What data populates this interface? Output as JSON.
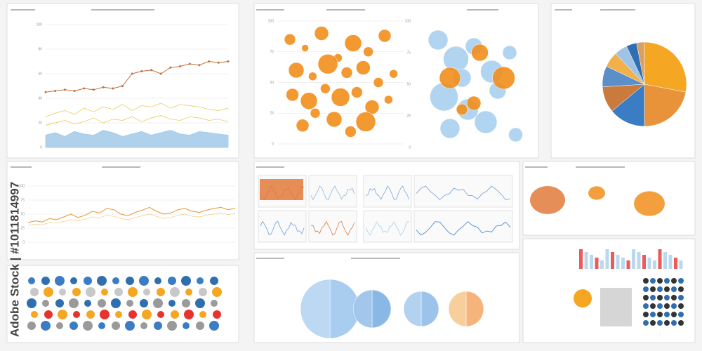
{
  "watermark": "Adobe Stock | #1011814997",
  "chart_data": [
    {
      "type": "line",
      "x": [
        0,
        1,
        2,
        3,
        4,
        5,
        6,
        7,
        8,
        9,
        10,
        11,
        12,
        13,
        14,
        15,
        16,
        17,
        18,
        19
      ],
      "xlim": [
        0,
        19
      ],
      "ylim": [
        0,
        100
      ],
      "yticks": [
        0,
        20,
        40,
        60,
        80,
        100
      ],
      "grid": true,
      "series": [
        {
          "color": "#c0703a",
          "values": [
            45,
            46,
            47,
            46,
            48,
            47,
            49,
            48,
            50,
            60,
            62,
            63,
            60,
            65,
            66,
            68,
            67,
            70,
            69,
            70
          ]
        },
        {
          "color": "#e8c24a",
          "values": [
            25,
            28,
            30,
            27,
            32,
            29,
            33,
            31,
            35,
            30,
            34,
            33,
            36,
            32,
            35,
            34,
            33,
            31,
            30,
            32
          ]
        },
        {
          "color": "#e8c24a",
          "values": [
            18,
            20,
            22,
            19,
            21,
            24,
            20,
            23,
            22,
            25,
            21,
            24,
            26,
            23,
            22,
            25,
            24,
            22,
            23,
            21
          ]
        },
        {
          "color": "#9cc6e6",
          "area": true,
          "values": [
            10,
            12,
            9,
            13,
            11,
            10,
            14,
            12,
            9,
            11,
            13,
            10,
            12,
            14,
            11,
            10,
            13,
            12,
            11,
            10
          ]
        }
      ]
    },
    {
      "type": "bubble",
      "xlim": [
        0,
        100
      ],
      "ylim": [
        0,
        100
      ],
      "yticks": [
        0,
        25,
        50,
        75,
        100
      ],
      "grid": true,
      "series": [
        {
          "color": "#f28e1c",
          "x": [
            10,
            22,
            35,
            48,
            60,
            72,
            85,
            15,
            28,
            40,
            55,
            68,
            80,
            92,
            12,
            25,
            38,
            50,
            63,
            75,
            88,
            20,
            45,
            70,
            30,
            58
          ],
          "y": [
            85,
            78,
            90,
            70,
            82,
            75,
            88,
            60,
            55,
            65,
            58,
            62,
            50,
            57,
            40,
            35,
            45,
            38,
            42,
            30,
            36,
            15,
            20,
            18,
            25,
            10
          ],
          "size": [
            8,
            5,
            10,
            6,
            12,
            7,
            9,
            11,
            6,
            14,
            8,
            10,
            7,
            6,
            9,
            12,
            7,
            13,
            8,
            10,
            6,
            9,
            11,
            14,
            7,
            8
          ]
        }
      ]
    },
    {
      "type": "bubble",
      "xlim": [
        0,
        100
      ],
      "ylim": [
        0,
        100
      ],
      "yticks": [
        0,
        25,
        50,
        75,
        100
      ],
      "grid": false,
      "series": [
        {
          "color": "#a9cfee",
          "x": [
            20,
            35,
            50,
            65,
            80,
            25,
            45,
            70,
            30,
            60,
            85,
            40
          ],
          "y": [
            85,
            70,
            80,
            60,
            75,
            40,
            30,
            45,
            15,
            20,
            10,
            55
          ],
          "size": [
            14,
            18,
            12,
            16,
            10,
            20,
            15,
            12,
            14,
            16,
            10,
            13
          ]
        },
        {
          "color": "#f28e1c",
          "x": [
            55,
            30,
            75,
            50,
            40
          ],
          "y": [
            75,
            55,
            55,
            35,
            30
          ],
          "size": [
            12,
            15,
            16,
            10,
            8
          ]
        }
      ]
    },
    {
      "type": "pie",
      "values": [
        28,
        22,
        14,
        10,
        8,
        6,
        5,
        4,
        3
      ],
      "colors": [
        "#f5a623",
        "#e8933a",
        "#3a7dc4",
        "#c97a3c",
        "#5b8fc9",
        "#f0b04a",
        "#9fc3e6",
        "#2f6fb0",
        "#d9a066"
      ]
    },
    {
      "type": "line",
      "x": [
        0,
        1,
        2,
        3,
        4,
        5,
        6,
        7,
        8,
        9,
        10,
        11,
        12,
        13,
        14,
        15,
        16,
        17,
        18,
        19,
        20,
        21,
        22,
        23,
        24,
        25,
        26,
        27,
        28,
        29
      ],
      "xlim": [
        0,
        29
      ],
      "ylim": [
        0,
        100
      ],
      "yticks": [
        0,
        25,
        50,
        75,
        100
      ],
      "grid": true,
      "series": [
        {
          "color": "#e8952e",
          "values": [
            35,
            38,
            36,
            42,
            40,
            45,
            50,
            44,
            48,
            55,
            52,
            60,
            58,
            50,
            47,
            53,
            57,
            62,
            55,
            50,
            52,
            58,
            60,
            55,
            53,
            57,
            60,
            62,
            58,
            60
          ]
        },
        {
          "color": "#f3c98a",
          "values": [
            30,
            32,
            31,
            35,
            34,
            37,
            40,
            38,
            41,
            45,
            43,
            48,
            46,
            42,
            40,
            44,
            47,
            50,
            46,
            42,
            44,
            48,
            50,
            46,
            45,
            48,
            50,
            52,
            49,
            51
          ]
        }
      ]
    },
    {
      "type": "pie",
      "values": [
        50,
        50
      ],
      "colors": [
        "#a8cdee",
        "#bcd8f2"
      ]
    },
    {
      "type": "pie",
      "values": [
        50,
        50
      ],
      "colors": [
        "#8ab8e6",
        "#a3c7ec"
      ]
    },
    {
      "type": "pie",
      "values": [
        50,
        50
      ],
      "colors": [
        "#9cc3ea",
        "#b2d2f0"
      ]
    },
    {
      "type": "pie",
      "values": [
        50,
        50
      ],
      "colors": [
        "#f5b47a",
        "#f7cf9c"
      ]
    }
  ]
}
